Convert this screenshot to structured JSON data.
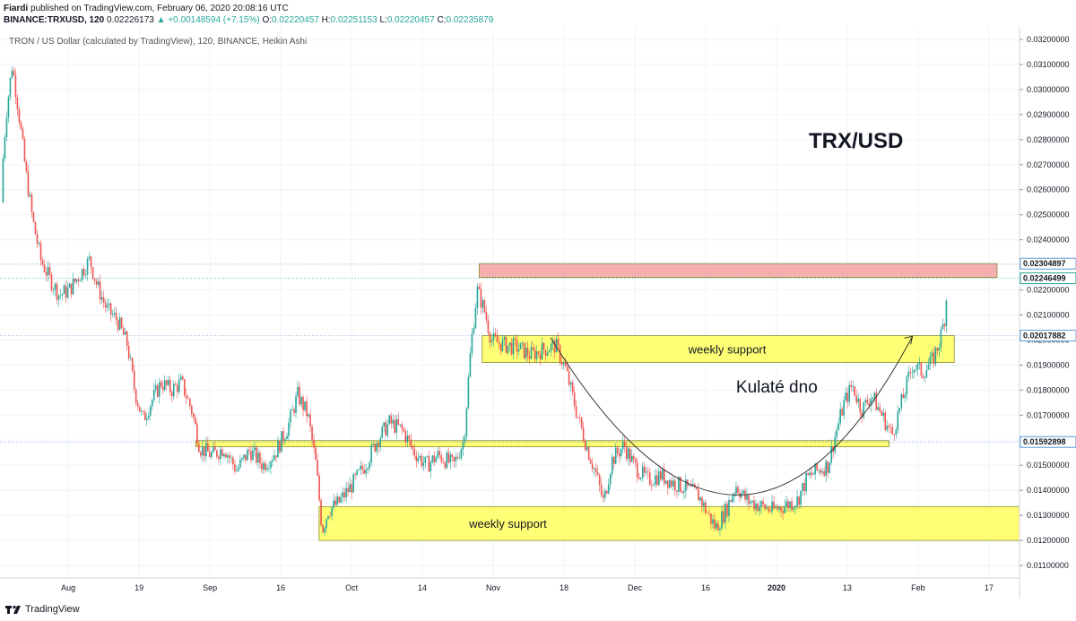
{
  "header": {
    "publisher": "Fiardi",
    "published_text": "published on TradingView.com, February 06, 2020 20:08:16 UTC",
    "symbol": "BINANCE:TRXUSD, 120",
    "last": "0.02226173",
    "change": "+0.00148594 (+7.15%)",
    "o_label": "O:",
    "o_value": "0.02220457",
    "h_label": "H:",
    "h_value": "0.02251153",
    "l_label": "L:",
    "l_value": "0.02220457",
    "c_label": "C:",
    "c_value": "0.02235879",
    "up_arrow": "▲"
  },
  "footer": {
    "brand": "TradingView",
    "logo_icon": "tradingview-logo-icon"
  },
  "colors": {
    "up": "#26a69a",
    "down": "#ef5350",
    "support": "#ffff66",
    "resistance": "#f4a6a6",
    "price_line": "#5b9bd5"
  },
  "chart_data": {
    "type": "candlestick",
    "title": "TRON / US Dollar (calculated by TradingView), 120, BINANCE, Heikin Ashi",
    "big_label": "TRX/USD",
    "ylim": [
      0.0105,
      0.0325
    ],
    "y_ticks": [
      "0.01100000",
      "0.01200000",
      "0.01300000",
      "0.01400000",
      "0.01500000",
      "0.01600000",
      "0.01700000",
      "0.01800000",
      "0.01900000",
      "0.02000000",
      "0.02100000",
      "0.02200000",
      "0.02300000",
      "0.02400000",
      "0.02500000",
      "0.02600000",
      "0.02700000",
      "0.02800000",
      "0.02900000",
      "0.03000000",
      "0.03100000",
      "0.03200000"
    ],
    "x_ticks": [
      "Aug",
      "19",
      "Sep",
      "16",
      "Oct",
      "14",
      "Nov",
      "18",
      "Dec",
      "16",
      "2020",
      "13",
      "Feb",
      "17"
    ],
    "price_tags": [
      {
        "value": 0.02304897,
        "label": "0.02304897",
        "color": "#5b9bd5"
      },
      {
        "value": 0.02246499,
        "label": "0.02246499",
        "color": "#26a69a"
      },
      {
        "value": 0.02017882,
        "label": "0.02017882",
        "color": "#5b9bd5"
      },
      {
        "value": 0.01592898,
        "label": "0.01592898",
        "color": "#5b9bd5"
      }
    ],
    "zones": [
      {
        "name": "resistance",
        "from": 0.0225,
        "to": 0.02305,
        "x_start": 0.47,
        "x_end": 0.978,
        "color": "#f4a6a6",
        "label": ""
      },
      {
        "name": "weekly-support-upper",
        "from": 0.0191,
        "to": 0.02018,
        "x_start": 0.473,
        "x_end": 0.936,
        "color": "#ffff66",
        "label": "weekly support"
      },
      {
        "name": "support-middle",
        "from": 0.01574,
        "to": 0.01598,
        "x_start": 0.192,
        "x_end": 0.872,
        "color": "#ffff66",
        "label": ""
      },
      {
        "name": "weekly-support-lower",
        "from": 0.012,
        "to": 0.01335,
        "x_start": 0.313,
        "x_end": 1.0,
        "color": "#ffff66",
        "label": "weekly support"
      }
    ],
    "annotations": [
      {
        "text": "Kulaté dno",
        "x": 0.722,
        "y": 0.0179
      }
    ],
    "rounded_bottom": {
      "start": [
        0.54,
        0.0201
      ],
      "control": [
        0.73,
        0.0075
      ],
      "end": [
        0.895,
        0.02015
      ]
    },
    "price_path": [
      [
        0.0,
        0.0255
      ],
      [
        0.006,
        0.029
      ],
      [
        0.012,
        0.031
      ],
      [
        0.018,
        0.0292
      ],
      [
        0.025,
        0.0268
      ],
      [
        0.032,
        0.0248
      ],
      [
        0.04,
        0.0232
      ],
      [
        0.048,
        0.0225
      ],
      [
        0.058,
        0.0218
      ],
      [
        0.068,
        0.022
      ],
      [
        0.078,
        0.0226
      ],
      [
        0.088,
        0.0232
      ],
      [
        0.095,
        0.0222
      ],
      [
        0.105,
        0.0212
      ],
      [
        0.115,
        0.0208
      ],
      [
        0.125,
        0.0198
      ],
      [
        0.132,
        0.018
      ],
      [
        0.14,
        0.0168
      ],
      [
        0.148,
        0.0175
      ],
      [
        0.158,
        0.0183
      ],
      [
        0.168,
        0.018
      ],
      [
        0.178,
        0.0183
      ],
      [
        0.188,
        0.0172
      ],
      [
        0.196,
        0.0157
      ],
      [
        0.208,
        0.0154
      ],
      [
        0.22,
        0.0157
      ],
      [
        0.232,
        0.0148
      ],
      [
        0.245,
        0.0156
      ],
      [
        0.258,
        0.015
      ],
      [
        0.27,
        0.0155
      ],
      [
        0.282,
        0.0165
      ],
      [
        0.292,
        0.0178
      ],
      [
        0.302,
        0.017
      ],
      [
        0.31,
        0.015
      ],
      [
        0.316,
        0.0124
      ],
      [
        0.322,
        0.0132
      ],
      [
        0.332,
        0.0135
      ],
      [
        0.345,
        0.0142
      ],
      [
        0.358,
        0.015
      ],
      [
        0.37,
        0.016
      ],
      [
        0.382,
        0.0167
      ],
      [
        0.395,
        0.0164
      ],
      [
        0.405,
        0.0156
      ],
      [
        0.418,
        0.015
      ],
      [
        0.43,
        0.0154
      ],
      [
        0.445,
        0.015
      ],
      [
        0.455,
        0.016
      ],
      [
        0.462,
        0.0198
      ],
      [
        0.468,
        0.022
      ],
      [
        0.475,
        0.0212
      ],
      [
        0.482,
        0.02
      ],
      [
        0.495,
        0.0198
      ],
      [
        0.508,
        0.0197
      ],
      [
        0.52,
        0.0194
      ],
      [
        0.532,
        0.0196
      ],
      [
        0.545,
        0.0198
      ],
      [
        0.555,
        0.0188
      ],
      [
        0.565,
        0.0172
      ],
      [
        0.575,
        0.0158
      ],
      [
        0.585,
        0.0146
      ],
      [
        0.592,
        0.0135
      ],
      [
        0.6,
        0.0152
      ],
      [
        0.612,
        0.0158
      ],
      [
        0.622,
        0.015
      ],
      [
        0.635,
        0.0144
      ],
      [
        0.648,
        0.0146
      ],
      [
        0.66,
        0.0143
      ],
      [
        0.672,
        0.0141
      ],
      [
        0.685,
        0.0138
      ],
      [
        0.695,
        0.013
      ],
      [
        0.702,
        0.0125
      ],
      [
        0.712,
        0.0132
      ],
      [
        0.722,
        0.0142
      ],
      [
        0.732,
        0.0136
      ],
      [
        0.745,
        0.0134
      ],
      [
        0.758,
        0.0132
      ],
      [
        0.77,
        0.0134
      ],
      [
        0.782,
        0.0136
      ],
      [
        0.792,
        0.0145
      ],
      [
        0.802,
        0.0148
      ],
      [
        0.812,
        0.015
      ],
      [
        0.82,
        0.0163
      ],
      [
        0.828,
        0.0175
      ],
      [
        0.836,
        0.0182
      ],
      [
        0.845,
        0.0172
      ],
      [
        0.855,
        0.0178
      ],
      [
        0.865,
        0.017
      ],
      [
        0.875,
        0.0162
      ],
      [
        0.885,
        0.0176
      ],
      [
        0.895,
        0.019
      ],
      [
        0.905,
        0.0187
      ],
      [
        0.915,
        0.0192
      ],
      [
        0.922,
        0.02
      ],
      [
        0.927,
        0.021
      ],
      [
        0.93,
        0.0226
      ]
    ]
  }
}
